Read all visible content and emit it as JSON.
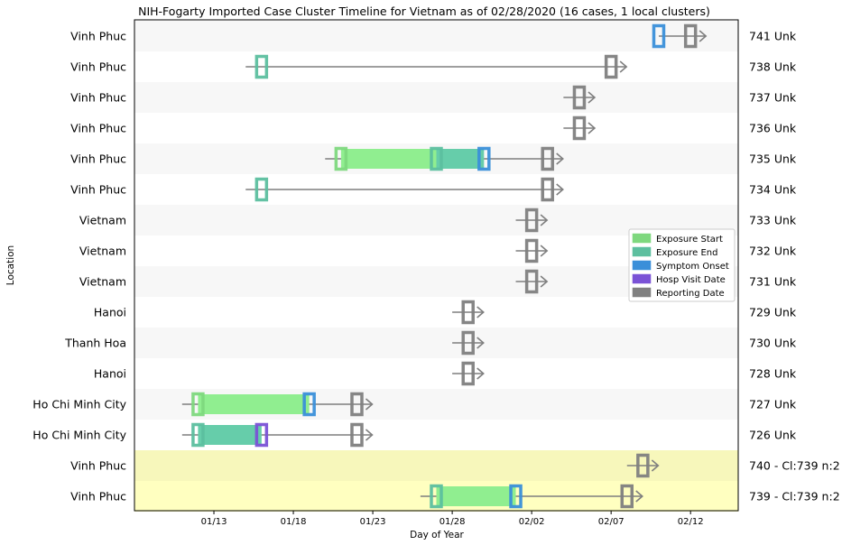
{
  "chart_data": {
    "type": "timeline",
    "title": "NIH-Fogarty Imported Case Cluster Timeline for Vietnam as of 02/28/2020   (16 cases, 1 local clusters)",
    "xlabel": "Day of Year",
    "ylabel": "Location",
    "x_range": [
      "2020-01-08",
      "2020-02-15"
    ],
    "x_ticks": [
      {
        "date": "2020-01-13",
        "label": "01/13"
      },
      {
        "date": "2020-01-18",
        "label": "01/18"
      },
      {
        "date": "2020-01-23",
        "label": "01/23"
      },
      {
        "date": "2020-01-28",
        "label": "01/28"
      },
      {
        "date": "2020-02-02",
        "label": "02/02"
      },
      {
        "date": "2020-02-07",
        "label": "02/07"
      },
      {
        "date": "2020-02-12",
        "label": "02/12"
      }
    ],
    "legend": {
      "position": "right",
      "entries": [
        {
          "key": "exposure_start",
          "label": "Exposure Start",
          "color": "#7ed87e"
        },
        {
          "key": "exposure_end",
          "label": "Exposure End",
          "color": "#5cbf9f"
        },
        {
          "key": "symptom_onset",
          "label": "Symptom Onset",
          "color": "#3a8fd9"
        },
        {
          "key": "hosp_visit",
          "label": "Hosp Visit Date",
          "color": "#7a52d6"
        },
        {
          "key": "reporting_date",
          "label": "Reporting Date",
          "color": "#808080"
        }
      ]
    },
    "colors": {
      "exposure_bar": "#90ee90",
      "exposure_end_bar": "#66cdaa",
      "row_stripe": "#f7f7f7",
      "cluster_band_1": "#f7f7bb",
      "cluster_band_2": "#ffffc0"
    },
    "rows": [
      {
        "location": "Vinh Phuc",
        "right_label": "741 Unk",
        "line": [
          "2020-02-10",
          "2020-02-12"
        ],
        "symptom_onset": "2020-02-10",
        "reporting_date": "2020-02-12"
      },
      {
        "location": "Vinh Phuc",
        "right_label": "738 Unk",
        "line": [
          "2020-01-15",
          "2020-02-07"
        ],
        "exposure_end": "2020-01-16",
        "reporting_date": "2020-02-07"
      },
      {
        "location": "Vinh Phuc",
        "right_label": "737 Unk",
        "line": [
          "2020-02-04",
          "2020-02-05"
        ],
        "reporting_date": "2020-02-05"
      },
      {
        "location": "Vinh Phuc",
        "right_label": "736 Unk",
        "line": [
          "2020-02-04",
          "2020-02-05"
        ],
        "reporting_date": "2020-02-05"
      },
      {
        "location": "Vinh Phuc",
        "right_label": "735 Unk",
        "line": [
          "2020-01-20",
          "2020-02-03"
        ],
        "exposure_start": "2020-01-21",
        "exposure_end": "2020-01-27",
        "symptom_onset": "2020-01-30",
        "reporting_date": "2020-02-03"
      },
      {
        "location": "Vinh Phuc",
        "right_label": "734 Unk",
        "line": [
          "2020-01-15",
          "2020-02-03"
        ],
        "exposure_end": "2020-01-16",
        "reporting_date": "2020-02-03"
      },
      {
        "location": "Vietnam",
        "right_label": "733 Unk",
        "line": [
          "2020-02-01",
          "2020-02-02"
        ],
        "reporting_date": "2020-02-02"
      },
      {
        "location": "Vietnam",
        "right_label": "732 Unk",
        "line": [
          "2020-02-01",
          "2020-02-02"
        ],
        "reporting_date": "2020-02-02"
      },
      {
        "location": "Vietnam",
        "right_label": "731 Unk",
        "line": [
          "2020-02-01",
          "2020-02-02"
        ],
        "reporting_date": "2020-02-02"
      },
      {
        "location": "Hanoi",
        "right_label": "729 Unk",
        "line": [
          "2020-01-28",
          "2020-01-29"
        ],
        "reporting_date": "2020-01-29"
      },
      {
        "location": "Thanh Hoa",
        "right_label": "730 Unk",
        "line": [
          "2020-01-28",
          "2020-01-29"
        ],
        "reporting_date": "2020-01-29"
      },
      {
        "location": "Hanoi",
        "right_label": "728 Unk",
        "line": [
          "2020-01-28",
          "2020-01-29"
        ],
        "reporting_date": "2020-01-29"
      },
      {
        "location": "Ho Chi Minh City",
        "right_label": "727 Unk",
        "line": [
          "2020-01-11",
          "2020-01-22"
        ],
        "exposure_start": "2020-01-12",
        "symptom_onset": "2020-01-19",
        "reporting_date": "2020-01-22"
      },
      {
        "location": "Ho Chi Minh City",
        "right_label": "726 Unk",
        "line": [
          "2020-01-11",
          "2020-01-22"
        ],
        "exposure_end": "2020-01-12",
        "hosp_visit": "2020-01-16",
        "reporting_date": "2020-01-22"
      },
      {
        "location": "Vinh Phuc",
        "right_label": "740 - Cl:739 n:2",
        "line": [
          "2020-02-08",
          "2020-02-09"
        ],
        "reporting_date": "2020-02-09",
        "band": "cluster_band_1"
      },
      {
        "location": "Vinh Phuc",
        "right_label": "739 - Cl:739 n:2",
        "line": [
          "2020-01-26",
          "2020-02-08"
        ],
        "exposure_end": "2020-01-27",
        "symptom_onset": "2020-02-01",
        "reporting_date": "2020-02-08",
        "band": "cluster_band_2"
      }
    ]
  }
}
